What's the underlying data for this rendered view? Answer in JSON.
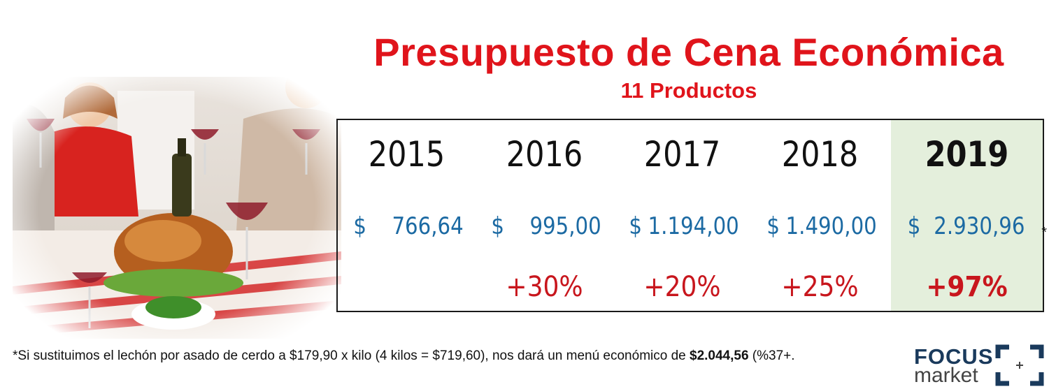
{
  "title": "Presupuesto de Cena Económica",
  "subtitle": "11 Productos",
  "columns": [
    {
      "year": "2015",
      "currency": "$",
      "amount": "766,64",
      "change": ""
    },
    {
      "year": "2016",
      "currency": "$",
      "amount": "995,00",
      "change": "+30%"
    },
    {
      "year": "2017",
      "currency": "$",
      "amount": "1.194,00",
      "change": "+20%"
    },
    {
      "year": "2018",
      "currency": "$",
      "amount": "1.490,00",
      "change": "+25%"
    },
    {
      "year": "2019",
      "currency": "$",
      "amount": "2.930,96",
      "change": "+97%",
      "asterisk": "*"
    }
  ],
  "footnote": {
    "text": "*Si sustituimos el lechón por asado de cerdo a $179,90 x kilo (4 kilos  =  $719,60), nos dará un menú económico  de ",
    "highlight": "$2.044,56",
    "suffix": "  (%37+."
  },
  "logo": {
    "line1": "FOCUS",
    "line2": "market"
  },
  "colors": {
    "title": "#e0141b",
    "price": "#1c6aa3",
    "change": "#c8161d",
    "highlight_bg": "#e4efdc"
  }
}
